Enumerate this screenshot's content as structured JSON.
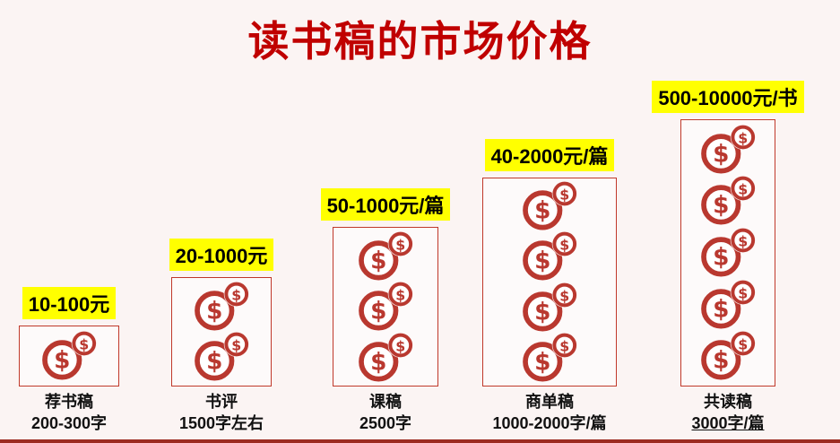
{
  "title": "读书稿的市场价格",
  "colors": {
    "accent": "#C00000",
    "coin": "#B9382F",
    "highlight": "#FFFF00",
    "background": "#FBF4F3",
    "box_border": "#C0392B"
  },
  "columns": [
    {
      "price": "10-100元",
      "name": "荐书稿",
      "words": "200-300字",
      "coins": 1
    },
    {
      "price": "20-1000元",
      "name": "书评",
      "words": "1500字左右",
      "coins": 2
    },
    {
      "price": "50-1000元/篇",
      "name": "课稿",
      "words": "2500字",
      "coins": 3
    },
    {
      "price": "40-2000元/篇",
      "name": "商单稿",
      "words": "1000-2000字/篇",
      "coins": 4
    },
    {
      "price": "500-10000元/书",
      "name": "共读稿",
      "words": "3000字/篇",
      "coins": 5
    }
  ],
  "chart_data": {
    "type": "bar",
    "title": "读书稿的市场价格",
    "categories": [
      "荐书稿 200-300字",
      "书评 1500字左右",
      "课稿 2500字",
      "商单稿 1000-2000字/篇",
      "共读稿 3000字/篇"
    ],
    "values": [
      1,
      2,
      3,
      4,
      5
    ],
    "value_unit": "coin-stacks (relative price level)",
    "data_labels": [
      "10-100元",
      "20-1000元",
      "50-1000元/篇",
      "40-2000元/篇",
      "500-10000元/书"
    ],
    "xlabel": "",
    "ylabel": "",
    "legend": false,
    "grid": false
  }
}
